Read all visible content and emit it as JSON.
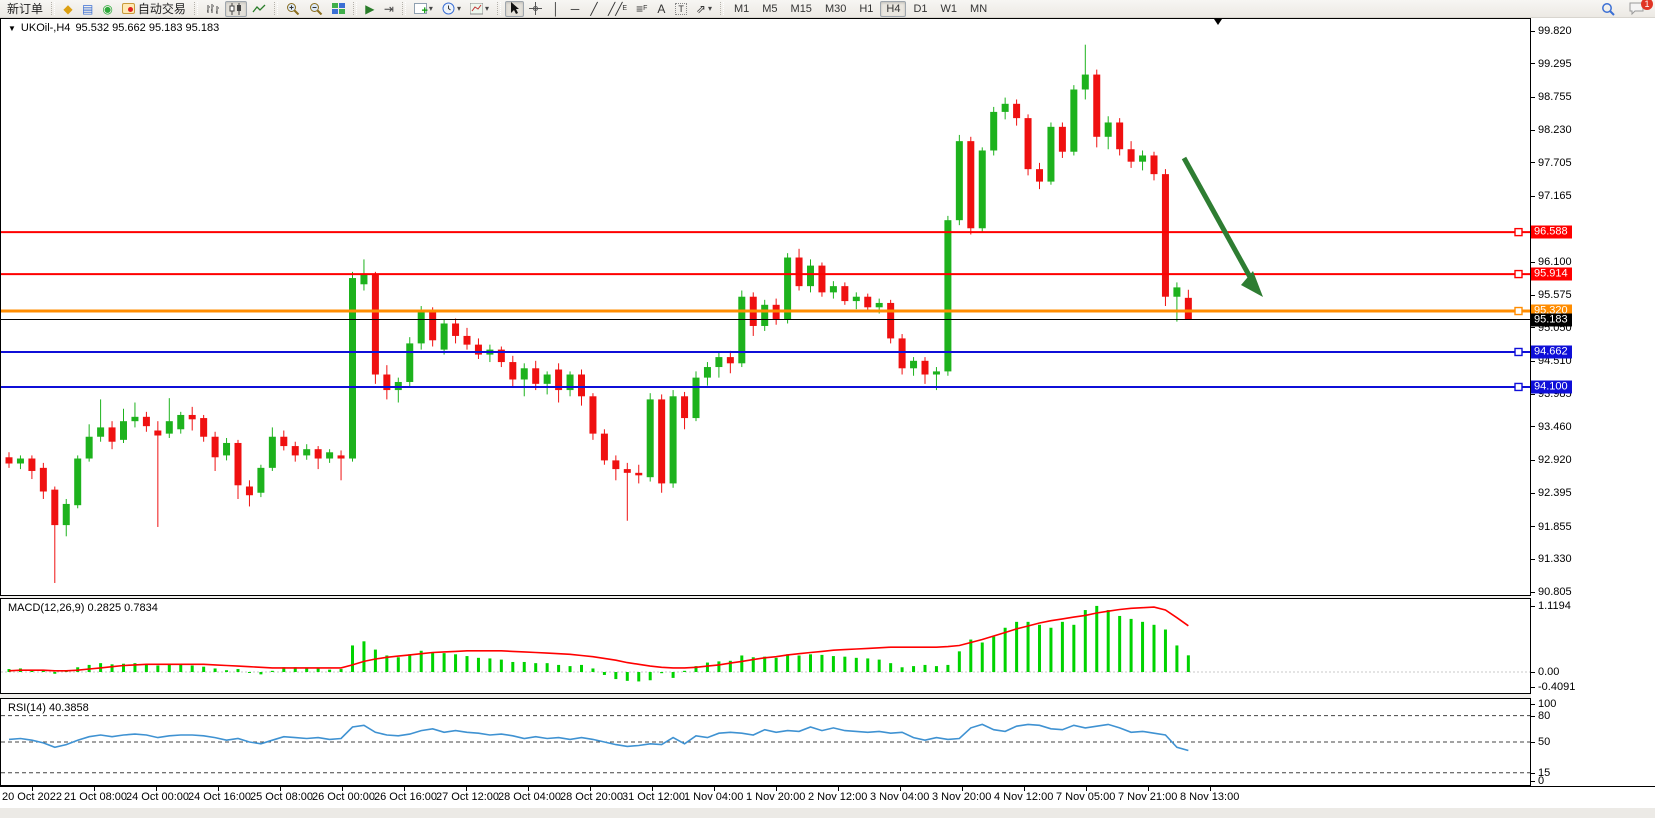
{
  "toolbar": {
    "new_order_label": "新订单",
    "auto_trading_label": "自动交易",
    "timeframes": [
      "M1",
      "M5",
      "M15",
      "M30",
      "H1",
      "H4",
      "D1",
      "W1",
      "MN"
    ],
    "active_timeframe": "H4",
    "notification_badge": "1"
  },
  "chart": {
    "title_symbol": "UKOil-,H4",
    "title_ohlc": "95.532 95.662 95.183 95.183",
    "macd_label": "MACD(12,26,9) 0.2825 0.7834",
    "rsi_label": "RSI(14) 40.3858"
  },
  "colors": {
    "bull": "#1db21d",
    "bear": "#ef1010",
    "line_red": "#ff0000",
    "line_orange": "#ff8c00",
    "line_blue": "#0f0fd8",
    "current_price": "#000000",
    "macd_bar": "#00d300",
    "macd_signal": "#ff0000",
    "rsi_line": "#3f92d2",
    "arrow_green": "#2e7d32"
  },
  "chart_data": {
    "type": "candlestick",
    "symbol": "UKOil-",
    "period": "H4",
    "open": 95.532,
    "high": 95.662,
    "low": 95.183,
    "close": 95.183,
    "price_axis_ticks": [
      "99.820",
      "99.295",
      "98.755",
      "98.230",
      "97.705",
      "97.165",
      "96.100",
      "95.575",
      "95.050",
      "94.510",
      "93.985",
      "93.460",
      "92.920",
      "92.395",
      "91.855",
      "91.330",
      "90.805"
    ],
    "hlines": [
      {
        "price": 96.588,
        "label": "96.588",
        "color_key": "line_red",
        "width": 2
      },
      {
        "price": 95.914,
        "label": "95.914",
        "color_key": "line_red",
        "width": 2
      },
      {
        "price": 95.32,
        "label": "95.320",
        "color_key": "line_orange",
        "width": 3
      },
      {
        "price": 94.662,
        "label": "94.662",
        "color_key": "line_blue",
        "width": 2
      },
      {
        "price": 94.1,
        "label": "94.100",
        "color_key": "line_blue",
        "width": 2
      }
    ],
    "current_price": {
      "price": 95.183,
      "label": "95.183"
    },
    "time_axis_labels": [
      "20 Oct 2022",
      "21 Oct 08:00",
      "24 Oct 00:00",
      "24 Oct 16:00",
      "25 Oct 08:00",
      "26 Oct 00:00",
      "26 Oct 16:00",
      "27 Oct 12:00",
      "28 Oct 04:00",
      "28 Oct 20:00",
      "31 Oct 12:00",
      "1 Nov 04:00",
      "1 Nov 20:00",
      "2 Nov 12:00",
      "3 Nov 04:00",
      "3 Nov 20:00",
      "4 Nov 12:00",
      "7 Nov 05:00",
      "7 Nov 21:00",
      "8 Nov 13:00"
    ],
    "candles_ohlc": [
      [
        92.97,
        93.05,
        92.8,
        92.87
      ],
      [
        92.87,
        93.0,
        92.78,
        92.95
      ],
      [
        92.95,
        93.0,
        92.62,
        92.75
      ],
      [
        92.8,
        92.88,
        92.3,
        92.42
      ],
      [
        92.45,
        92.5,
        90.95,
        91.88
      ],
      [
        91.88,
        92.3,
        91.7,
        92.22
      ],
      [
        92.2,
        93.0,
        92.15,
        92.95
      ],
      [
        92.95,
        93.5,
        92.9,
        93.3
      ],
      [
        93.3,
        93.9,
        93.22,
        93.45
      ],
      [
        93.45,
        93.55,
        93.1,
        93.22
      ],
      [
        93.25,
        93.75,
        93.2,
        93.55
      ],
      [
        93.55,
        93.85,
        93.45,
        93.62
      ],
      [
        93.62,
        93.7,
        93.38,
        93.47
      ],
      [
        93.4,
        93.55,
        91.85,
        93.32
      ],
      [
        93.35,
        93.92,
        93.28,
        93.55
      ],
      [
        93.42,
        93.7,
        93.35,
        93.65
      ],
      [
        93.65,
        93.78,
        93.4,
        93.58
      ],
      [
        93.6,
        93.65,
        93.22,
        93.3
      ],
      [
        93.3,
        93.38,
        92.75,
        92.97
      ],
      [
        93.0,
        93.28,
        92.92,
        93.2
      ],
      [
        93.2,
        93.25,
        92.3,
        92.52
      ],
      [
        92.5,
        92.6,
        92.18,
        92.36
      ],
      [
        92.4,
        92.85,
        92.33,
        92.8
      ],
      [
        92.8,
        93.45,
        92.75,
        93.3
      ],
      [
        93.3,
        93.4,
        93.08,
        93.15
      ],
      [
        93.15,
        93.22,
        92.9,
        93.0
      ],
      [
        93.0,
        93.18,
        92.93,
        93.1
      ],
      [
        93.1,
        93.15,
        92.78,
        92.95
      ],
      [
        92.95,
        93.1,
        92.88,
        93.05
      ],
      [
        93.0,
        93.08,
        92.6,
        92.95
      ],
      [
        92.95,
        95.95,
        92.9,
        95.85
      ],
      [
        95.75,
        96.15,
        95.65,
        95.9
      ],
      [
        95.9,
        95.95,
        94.15,
        94.3
      ],
      [
        94.3,
        94.45,
        93.9,
        94.05
      ],
      [
        94.05,
        94.25,
        93.85,
        94.18
      ],
      [
        94.18,
        94.9,
        94.1,
        94.8
      ],
      [
        94.8,
        95.4,
        94.7,
        95.32
      ],
      [
        95.32,
        95.38,
        94.75,
        94.85
      ],
      [
        94.7,
        95.18,
        94.62,
        95.12
      ],
      [
        95.12,
        95.2,
        94.8,
        94.92
      ],
      [
        94.92,
        95.05,
        94.7,
        94.78
      ],
      [
        94.78,
        94.88,
        94.55,
        94.62
      ],
      [
        94.62,
        94.78,
        94.5,
        94.7
      ],
      [
        94.7,
        94.75,
        94.42,
        94.5
      ],
      [
        94.5,
        94.6,
        94.1,
        94.22
      ],
      [
        94.22,
        94.48,
        93.95,
        94.4
      ],
      [
        94.4,
        94.52,
        94.05,
        94.15
      ],
      [
        94.15,
        94.35,
        93.98,
        94.3
      ],
      [
        94.38,
        94.48,
        93.85,
        94.05
      ],
      [
        94.05,
        94.35,
        93.95,
        94.3
      ],
      [
        94.3,
        94.38,
        93.8,
        93.95
      ],
      [
        93.95,
        94.0,
        93.25,
        93.35
      ],
      [
        93.35,
        93.42,
        92.85,
        92.92
      ],
      [
        92.92,
        93.0,
        92.6,
        92.78
      ],
      [
        92.78,
        92.88,
        91.95,
        92.72
      ],
      [
        92.72,
        92.85,
        92.55,
        92.68
      ],
      [
        92.65,
        94.0,
        92.58,
        93.9
      ],
      [
        93.9,
        93.98,
        92.4,
        92.55
      ],
      [
        92.55,
        94.05,
        92.48,
        93.95
      ],
      [
        93.95,
        94.02,
        93.42,
        93.6
      ],
      [
        93.6,
        94.35,
        93.55,
        94.25
      ],
      [
        94.25,
        94.5,
        94.12,
        94.42
      ],
      [
        94.42,
        94.65,
        94.25,
        94.58
      ],
      [
        94.58,
        94.68,
        94.32,
        94.48
      ],
      [
        94.48,
        95.65,
        94.42,
        95.55
      ],
      [
        95.55,
        95.62,
        94.92,
        95.08
      ],
      [
        95.08,
        95.5,
        95.0,
        95.42
      ],
      [
        95.42,
        95.52,
        95.1,
        95.18
      ],
      [
        95.18,
        96.25,
        95.12,
        96.18
      ],
      [
        96.18,
        96.32,
        95.65,
        95.72
      ],
      [
        95.72,
        96.15,
        95.62,
        96.05
      ],
      [
        96.05,
        96.1,
        95.55,
        95.62
      ],
      [
        95.62,
        95.8,
        95.52,
        95.72
      ],
      [
        95.72,
        95.78,
        95.42,
        95.48
      ],
      [
        95.48,
        95.62,
        95.35,
        95.55
      ],
      [
        95.55,
        95.6,
        95.3,
        95.38
      ],
      [
        95.38,
        95.52,
        95.28,
        95.45
      ],
      [
        95.45,
        95.5,
        94.8,
        94.88
      ],
      [
        94.88,
        94.95,
        94.3,
        94.4
      ],
      [
        94.4,
        94.58,
        94.28,
        94.52
      ],
      [
        94.52,
        94.58,
        94.15,
        94.3
      ],
      [
        94.3,
        94.42,
        94.05,
        94.35
      ],
      [
        94.35,
        96.85,
        94.28,
        96.78
      ],
      [
        96.78,
        98.15,
        96.7,
        98.05
      ],
      [
        98.05,
        98.12,
        96.55,
        96.65
      ],
      [
        96.65,
        97.95,
        96.58,
        97.9
      ],
      [
        97.9,
        98.6,
        97.82,
        98.52
      ],
      [
        98.52,
        98.75,
        98.4,
        98.65
      ],
      [
        98.65,
        98.72,
        98.3,
        98.42
      ],
      [
        98.42,
        98.48,
        97.5,
        97.6
      ],
      [
        97.6,
        97.7,
        97.28,
        97.4
      ],
      [
        97.4,
        98.35,
        97.35,
        98.28
      ],
      [
        98.28,
        98.35,
        97.78,
        97.88
      ],
      [
        97.88,
        98.95,
        97.82,
        98.88
      ],
      [
        98.88,
        99.6,
        98.72,
        99.12
      ],
      [
        99.12,
        99.2,
        97.95,
        98.12
      ],
      [
        98.12,
        98.45,
        97.92,
        98.35
      ],
      [
        98.35,
        98.42,
        97.82,
        97.92
      ],
      [
        97.92,
        98.05,
        97.62,
        97.72
      ],
      [
        97.72,
        97.9,
        97.58,
        97.82
      ],
      [
        97.82,
        97.88,
        97.42,
        97.52
      ],
      [
        97.52,
        97.6,
        95.4,
        95.55
      ],
      [
        95.55,
        95.78,
        95.15,
        95.7
      ],
      [
        95.532,
        95.662,
        95.183,
        95.183
      ]
    ],
    "macd": {
      "params": "12,26,9",
      "value": 0.2825,
      "signal_value": 0.7834,
      "axis_labels": [
        "1.1194",
        "0.00",
        "-0.4091"
      ],
      "histogram": [
        0.05,
        0.06,
        0.04,
        0.02,
        -0.03,
        0.02,
        0.08,
        0.12,
        0.15,
        0.13,
        0.14,
        0.15,
        0.13,
        0.11,
        0.12,
        0.12,
        0.11,
        0.09,
        0.06,
        0.03,
        0.05,
        0.0,
        -0.04,
        0.02,
        0.08,
        0.08,
        0.06,
        0.06,
        0.04,
        0.05,
        0.45,
        0.52,
        0.38,
        0.28,
        0.25,
        0.3,
        0.36,
        0.33,
        0.32,
        0.3,
        0.27,
        0.24,
        0.23,
        0.21,
        0.17,
        0.17,
        0.15,
        0.15,
        0.12,
        0.1,
        0.12,
        0.06,
        -0.05,
        -0.12,
        -0.15,
        -0.16,
        -0.14,
        -0.02,
        -0.1,
        0.02,
        0.1,
        0.16,
        0.18,
        0.19,
        0.28,
        0.25,
        0.26,
        0.24,
        0.3,
        0.28,
        0.3,
        0.29,
        0.27,
        0.26,
        0.24,
        0.23,
        0.21,
        0.15,
        0.08,
        0.1,
        0.12,
        0.1,
        0.12,
        0.35,
        0.55,
        0.5,
        0.6,
        0.75,
        0.85,
        0.85,
        0.8,
        0.75,
        0.85,
        0.8,
        1.05,
        1.12,
        1.05,
        0.95,
        0.9,
        0.85,
        0.8,
        0.72,
        0.45,
        0.2825
      ],
      "signal_line": [
        0.02,
        0.03,
        0.03,
        0.03,
        0.02,
        0.02,
        0.03,
        0.05,
        0.07,
        0.09,
        0.11,
        0.12,
        0.13,
        0.13,
        0.13,
        0.13,
        0.13,
        0.13,
        0.12,
        0.11,
        0.1,
        0.09,
        0.08,
        0.07,
        0.07,
        0.07,
        0.07,
        0.07,
        0.07,
        0.07,
        0.12,
        0.18,
        0.22,
        0.25,
        0.27,
        0.29,
        0.31,
        0.33,
        0.34,
        0.35,
        0.36,
        0.36,
        0.36,
        0.36,
        0.35,
        0.34,
        0.33,
        0.32,
        0.31,
        0.3,
        0.28,
        0.26,
        0.23,
        0.2,
        0.16,
        0.13,
        0.1,
        0.08,
        0.07,
        0.07,
        0.08,
        0.1,
        0.12,
        0.15,
        0.18,
        0.21,
        0.24,
        0.26,
        0.29,
        0.31,
        0.33,
        0.35,
        0.37,
        0.38,
        0.39,
        0.4,
        0.41,
        0.42,
        0.42,
        0.42,
        0.42,
        0.42,
        0.43,
        0.45,
        0.5,
        0.55,
        0.61,
        0.67,
        0.73,
        0.78,
        0.83,
        0.87,
        0.9,
        0.93,
        0.96,
        1.0,
        1.03,
        1.06,
        1.08,
        1.09,
        1.1,
        1.05,
        0.92,
        0.7834
      ]
    },
    "rsi": {
      "period": 14,
      "value": 40.3858,
      "axis_labels": [
        "100",
        "80",
        "50",
        "15",
        "0"
      ],
      "dashed_levels": [
        80,
        50,
        15
      ],
      "values": [
        53,
        54,
        52,
        49,
        44,
        47,
        52,
        56,
        58,
        56,
        58,
        59,
        58,
        55,
        57,
        58,
        58,
        57,
        55,
        52,
        54,
        50,
        48,
        52,
        56,
        55,
        54,
        55,
        53,
        54,
        67,
        69,
        61,
        58,
        57,
        59,
        63,
        65,
        61,
        63,
        61,
        60,
        58,
        59,
        57,
        54,
        56,
        54,
        55,
        53,
        55,
        53,
        50,
        47,
        45,
        46,
        48,
        47,
        55,
        48,
        57,
        55,
        60,
        61,
        60,
        58,
        64,
        61,
        63,
        62,
        67,
        63,
        66,
        63,
        62,
        61,
        62,
        60,
        61,
        55,
        52,
        55,
        53,
        54,
        66,
        70,
        64,
        62,
        68,
        70,
        69,
        65,
        64,
        69,
        66,
        68,
        70,
        66,
        61,
        62,
        60,
        58,
        44,
        40.39
      ]
    },
    "annotation_arrow": {
      "description": "thick green arrow pointing down-right from the recent highs toward the orange 95.320 line"
    }
  }
}
